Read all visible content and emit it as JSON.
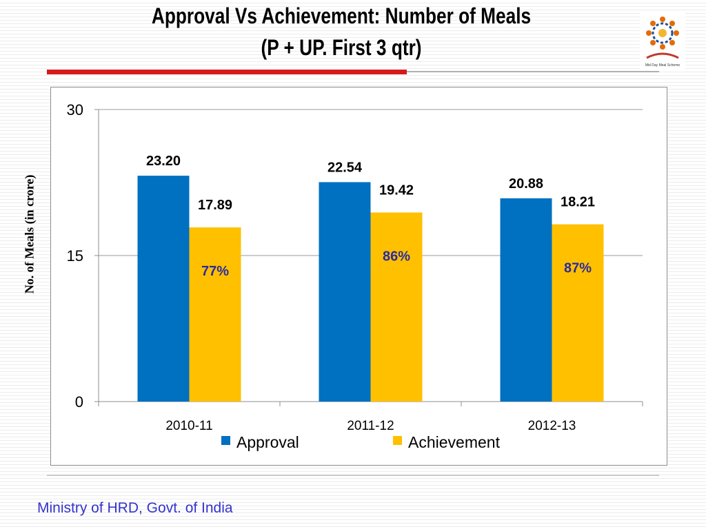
{
  "slide": {
    "title_line_1": "Approval Vs Achievement:  Number of Meals",
    "title_line_2": "(P + UP. First 3 qtr)",
    "footer": "Ministry of HRD, Govt. of India",
    "logo_caption": "Mid Day Meal Scheme",
    "logo_icon": "mid-day-meal-scheme-emblem",
    "colors": {
      "title": "#000000",
      "accent_bar": "#d7191c",
      "footer": "#3333cc"
    }
  },
  "chart_data": {
    "type": "bar",
    "categories": [
      "2010-11",
      "2011-12",
      "2012-13"
    ],
    "series": [
      {
        "name": "Approval",
        "values": [
          23.2,
          22.54,
          20.88
        ],
        "labels": [
          "23.20",
          "22.54",
          "20.88"
        ],
        "color": "#0070c0"
      },
      {
        "name": "Achievement",
        "values": [
          17.89,
          19.42,
          18.21
        ],
        "labels": [
          "17.89",
          "19.42",
          "18.21"
        ],
        "color": "#ffc000"
      }
    ],
    "annotations": [
      "77%",
      "86%",
      "87%"
    ],
    "annotation_color": "#2b2b9e",
    "ylabel": "No. of Meals (in crore)",
    "ylim": [
      0,
      30
    ],
    "yticks": [
      0,
      15,
      30
    ],
    "grid": true,
    "legend": "bottom"
  }
}
